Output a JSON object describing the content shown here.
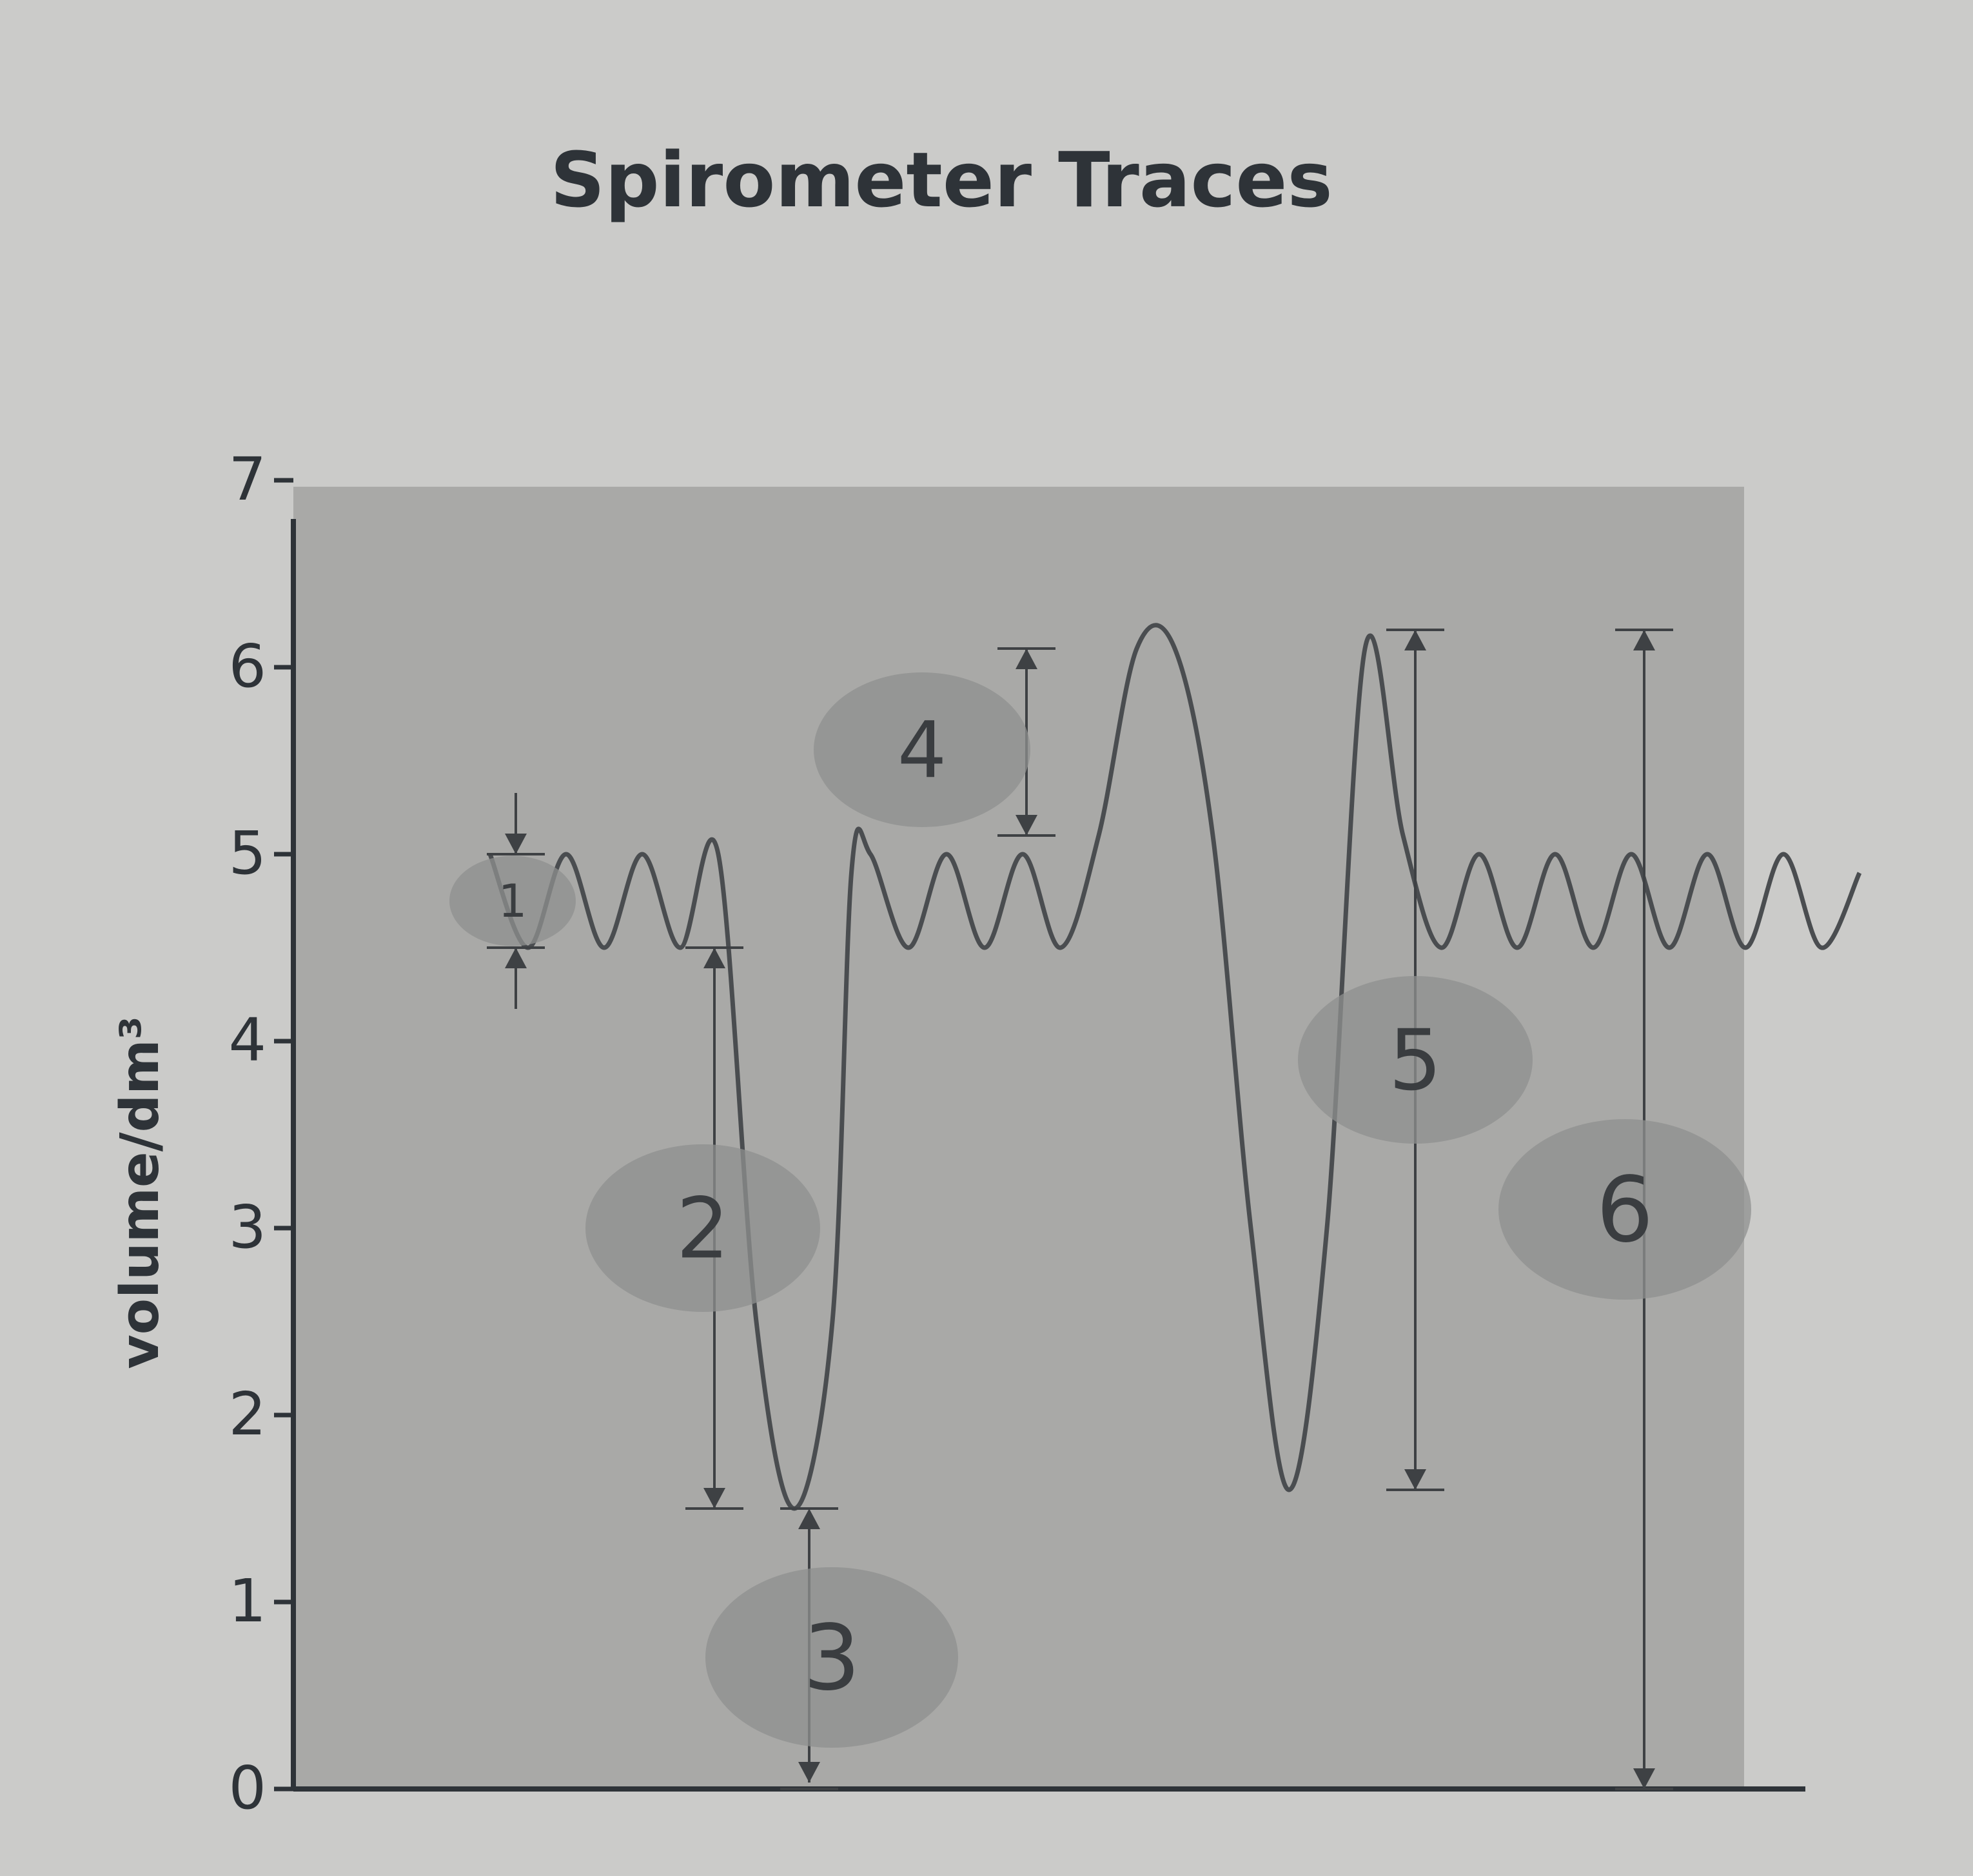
{
  "chart_data": {
    "type": "line",
    "title": "Spirometer Traces",
    "ylabel": "volume/dm³",
    "xlabel": "",
    "ylim": [
      0,
      7
    ],
    "yticks": [
      0,
      1,
      2,
      3,
      4,
      5,
      6,
      7
    ],
    "series": [
      {
        "x": [
          0,
          2,
          4,
          6,
          8,
          10,
          12,
          14,
          16,
          18,
          19,
          20,
          22,
          24,
          26,
          28,
          30,
          32,
          34,
          36,
          38,
          40,
          42,
          44,
          46,
          48,
          50,
          52,
          54,
          56,
          58,
          60,
          62,
          64,
          66,
          68,
          70,
          72
        ],
        "y": [
          5.0,
          4.5,
          5.0,
          4.5,
          5.0,
          4.5,
          5.0,
          2.5,
          1.5,
          2.5,
          4.9,
          5.0,
          4.5,
          5.0,
          4.5,
          5.0,
          4.5,
          5.1,
          6.1,
          6.1,
          5.1,
          3.0,
          1.6,
          3.0,
          6.1,
          5.1,
          4.5,
          5.0,
          4.5,
          5.0,
          4.5,
          5.0,
          4.5,
          5.0,
          4.5,
          5.0,
          4.5,
          4.9
        ]
      }
    ],
    "annotations": [
      {
        "label": "1",
        "from": 5.0,
        "to": 4.5
      },
      {
        "label": "2",
        "from": 4.5,
        "to": 1.5
      },
      {
        "label": "3",
        "from": 1.5,
        "to": 0.0
      },
      {
        "label": "4",
        "from": 6.1,
        "to": 5.1
      },
      {
        "label": "5",
        "from": 6.2,
        "to": 1.6
      },
      {
        "label": "6",
        "from": 6.2,
        "to": 0.0
      }
    ]
  }
}
